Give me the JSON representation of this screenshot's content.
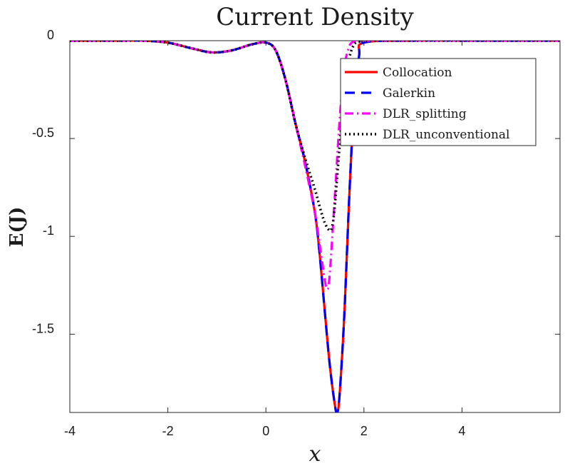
{
  "chart_data": {
    "type": "line",
    "title": "Current Density",
    "xlabel": "x",
    "ylabel": "E(J)",
    "xlim": [
      -4,
      6
    ],
    "ylim": [
      -1.9,
      0
    ],
    "xticks": [
      -4,
      -2,
      0,
      2,
      4
    ],
    "xtick_labels": [
      "-4",
      "-2",
      "0",
      "2",
      "4"
    ],
    "yticks": [
      0,
      -0.5,
      -1,
      -1.5
    ],
    "ytick_labels": [
      "0",
      "-0.5",
      "-1",
      "-1.5"
    ],
    "grid": false,
    "legend_position": "top-right",
    "series": [
      {
        "name": "Collocation",
        "color": "#ff0000",
        "style": "solid",
        "x": [
          -4,
          -3,
          -2.5,
          -2,
          -1.5,
          -1.1,
          -0.7,
          -0.3,
          0,
          0.2,
          0.4,
          0.6,
          0.8,
          1.0,
          1.1,
          1.2,
          1.3,
          1.4,
          1.45,
          1.5,
          1.6,
          1.7,
          1.8,
          1.9,
          2.0,
          3,
          4,
          5,
          6
        ],
        "y": [
          0,
          0,
          0,
          -0.01,
          -0.04,
          -0.06,
          -0.05,
          -0.02,
          -0.01,
          -0.05,
          -0.2,
          -0.42,
          -0.62,
          -0.88,
          -1.1,
          -1.38,
          -1.65,
          -1.85,
          -1.9,
          -1.82,
          -1.4,
          -0.8,
          -0.32,
          -0.08,
          -0.01,
          0,
          0,
          0,
          0
        ]
      },
      {
        "name": "Galerkin",
        "color": "#0000ff",
        "style": "dashed",
        "x": [
          -4,
          -3,
          -2.5,
          -2,
          -1.5,
          -1.1,
          -0.7,
          -0.3,
          0,
          0.2,
          0.4,
          0.6,
          0.8,
          1.0,
          1.1,
          1.2,
          1.3,
          1.4,
          1.45,
          1.5,
          1.6,
          1.7,
          1.8,
          1.9,
          2.0,
          3,
          4,
          5,
          6
        ],
        "y": [
          0,
          0,
          0,
          -0.01,
          -0.04,
          -0.06,
          -0.05,
          -0.02,
          -0.01,
          -0.05,
          -0.2,
          -0.42,
          -0.62,
          -0.88,
          -1.1,
          -1.38,
          -1.65,
          -1.85,
          -1.9,
          -1.82,
          -1.4,
          -0.8,
          -0.32,
          -0.08,
          -0.01,
          0,
          0,
          0,
          0
        ]
      },
      {
        "name": "DLR_splitting",
        "color": "#ff00ff",
        "style": "dashdot",
        "x": [
          -4,
          -3,
          -2.5,
          -2,
          -1.5,
          -1.1,
          -0.7,
          -0.3,
          0,
          0.2,
          0.4,
          0.6,
          0.8,
          1.0,
          1.1,
          1.2,
          1.25,
          1.3,
          1.4,
          1.5,
          1.6,
          1.7,
          1.8,
          2.0,
          3,
          4,
          5,
          6
        ],
        "y": [
          0,
          0,
          0,
          -0.01,
          -0.04,
          -0.06,
          -0.05,
          -0.02,
          -0.01,
          -0.05,
          -0.2,
          -0.42,
          -0.64,
          -0.88,
          -1.05,
          -1.22,
          -1.27,
          -1.2,
          -0.82,
          -0.42,
          -0.14,
          -0.03,
          -0.005,
          0,
          0,
          0,
          0,
          0
        ]
      },
      {
        "name": "DLR_unconventional",
        "color": "#000000",
        "style": "dotted",
        "x": [
          -4,
          -3,
          -2.5,
          -2,
          -1.5,
          -1.1,
          -0.7,
          -0.3,
          0,
          0.2,
          0.4,
          0.6,
          0.8,
          1.0,
          1.1,
          1.2,
          1.3,
          1.35,
          1.4,
          1.5,
          1.6,
          1.7,
          1.8,
          1.9,
          2.0,
          3,
          4,
          5,
          6
        ],
        "y": [
          0,
          0,
          0,
          -0.01,
          -0.04,
          -0.06,
          -0.05,
          -0.02,
          -0.01,
          -0.05,
          -0.2,
          -0.42,
          -0.6,
          -0.76,
          -0.85,
          -0.93,
          -0.97,
          -0.95,
          -0.86,
          -0.55,
          -0.26,
          -0.09,
          -0.02,
          -0.005,
          0,
          0,
          0,
          0,
          0
        ]
      }
    ]
  }
}
